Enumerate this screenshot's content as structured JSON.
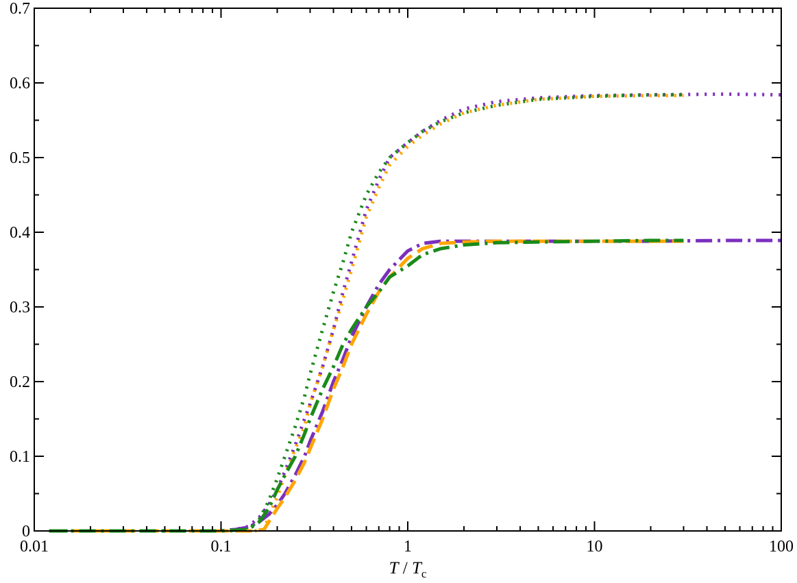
{
  "chart_data": {
    "type": "line",
    "xlabel_parts": {
      "var": "T",
      "sep": " / ",
      "var2": "T",
      "sub": "c"
    },
    "ylabel": "",
    "x_scale": "log",
    "xlim": [
      0.01,
      100
    ],
    "ylim": [
      0,
      0.7
    ],
    "x_ticks": [
      0.01,
      0.1,
      1,
      10,
      100
    ],
    "x_tick_labels": [
      "0.01",
      "0.1",
      "1",
      "10",
      "100"
    ],
    "y_ticks": [
      0,
      0.1,
      0.2,
      0.3,
      0.4,
      0.5,
      0.6,
      0.7
    ],
    "y_tick_labels": [
      "0",
      "0.1",
      "0.2",
      "0.3",
      "0.4",
      "0.5",
      "0.6",
      "0.7"
    ],
    "grid": false,
    "legend": "none",
    "series": [
      {
        "color": "#7b2fbe",
        "style": "dotted",
        "x": [
          0.012,
          0.05,
          0.1,
          0.12,
          0.14,
          0.16,
          0.18,
          0.2,
          0.22,
          0.25,
          0.28,
          0.3,
          0.35,
          0.4,
          0.45,
          0.5,
          0.6,
          0.7,
          0.8,
          1.0,
          1.2,
          1.5,
          2,
          3,
          5,
          10,
          20,
          50,
          100
        ],
        "y": [
          0,
          0,
          0,
          0.002,
          0.006,
          0.018,
          0.035,
          0.055,
          0.08,
          0.115,
          0.15,
          0.17,
          0.22,
          0.27,
          0.32,
          0.36,
          0.43,
          0.47,
          0.5,
          0.52,
          0.535,
          0.55,
          0.565,
          0.575,
          0.58,
          0.583,
          0.584,
          0.585,
          0.584
        ]
      },
      {
        "color": "#ffa500",
        "style": "dotted",
        "x": [
          0.012,
          0.1,
          0.15,
          0.17,
          0.18,
          0.2,
          0.22,
          0.25,
          0.28,
          0.3,
          0.35,
          0.4,
          0.45,
          0.5,
          0.6,
          0.7,
          0.8,
          1.0,
          1.2,
          1.5,
          2,
          3,
          5,
          10,
          20,
          30
        ],
        "y": [
          0,
          0,
          0,
          0.002,
          0.02,
          0.045,
          0.075,
          0.11,
          0.14,
          0.17,
          0.22,
          0.27,
          0.31,
          0.35,
          0.42,
          0.46,
          0.49,
          0.515,
          0.53,
          0.545,
          0.56,
          0.57,
          0.578,
          0.582,
          0.583,
          0.583
        ]
      },
      {
        "color": "#1a8a1a",
        "style": "dotted",
        "x": [
          0.012,
          0.1,
          0.14,
          0.16,
          0.18,
          0.2,
          0.22,
          0.25,
          0.28,
          0.3,
          0.35,
          0.4,
          0.45,
          0.5,
          0.6,
          0.7,
          0.8,
          1.0,
          1.2,
          1.5,
          2,
          3,
          5,
          10,
          20,
          30
        ],
        "y": [
          0,
          0,
          0.002,
          0.015,
          0.04,
          0.07,
          0.1,
          0.14,
          0.18,
          0.21,
          0.27,
          0.32,
          0.36,
          0.4,
          0.45,
          0.48,
          0.5,
          0.52,
          0.535,
          0.548,
          0.56,
          0.57,
          0.578,
          0.582,
          0.584,
          0.584
        ]
      },
      {
        "color": "#7b2fbe",
        "style": "dashdot",
        "x": [
          0.012,
          0.05,
          0.1,
          0.12,
          0.14,
          0.16,
          0.18,
          0.2,
          0.22,
          0.25,
          0.28,
          0.3,
          0.35,
          0.4,
          0.45,
          0.5,
          0.6,
          0.7,
          0.8,
          1.0,
          1.2,
          1.5,
          2,
          3,
          5,
          10,
          20,
          50,
          100
        ],
        "y": [
          0,
          0,
          0,
          0.002,
          0.005,
          0.012,
          0.022,
          0.035,
          0.05,
          0.075,
          0.1,
          0.12,
          0.16,
          0.2,
          0.23,
          0.26,
          0.3,
          0.33,
          0.35,
          0.375,
          0.385,
          0.388,
          0.388,
          0.388,
          0.388,
          0.388,
          0.388,
          0.389,
          0.389
        ]
      },
      {
        "color": "#ffa500",
        "style": "dashed",
        "x": [
          0.012,
          0.1,
          0.15,
          0.17,
          0.18,
          0.2,
          0.22,
          0.25,
          0.28,
          0.3,
          0.35,
          0.4,
          0.45,
          0.5,
          0.6,
          0.7,
          0.8,
          1.0,
          1.2,
          1.5,
          2,
          3,
          5,
          10,
          20,
          30
        ],
        "y": [
          0,
          0,
          0,
          0.002,
          0.012,
          0.03,
          0.045,
          0.068,
          0.092,
          0.11,
          0.15,
          0.19,
          0.22,
          0.25,
          0.29,
          0.32,
          0.34,
          0.365,
          0.378,
          0.385,
          0.387,
          0.388,
          0.388,
          0.388,
          0.388,
          0.388
        ]
      },
      {
        "color": "#1a8a1a",
        "style": "dashdot",
        "x": [
          0.012,
          0.05,
          0.1,
          0.14,
          0.16,
          0.18,
          0.2,
          0.22,
          0.25,
          0.28,
          0.3,
          0.35,
          0.4,
          0.45,
          0.5,
          0.6,
          0.7,
          0.8,
          1.0,
          1.2,
          1.5,
          2,
          3,
          5,
          10,
          20,
          30
        ],
        "y": [
          0,
          0,
          0,
          0.002,
          0.012,
          0.03,
          0.055,
          0.075,
          0.1,
          0.13,
          0.15,
          0.19,
          0.22,
          0.25,
          0.27,
          0.3,
          0.32,
          0.34,
          0.355,
          0.37,
          0.378,
          0.383,
          0.386,
          0.387,
          0.388,
          0.389,
          0.389
        ]
      }
    ]
  }
}
